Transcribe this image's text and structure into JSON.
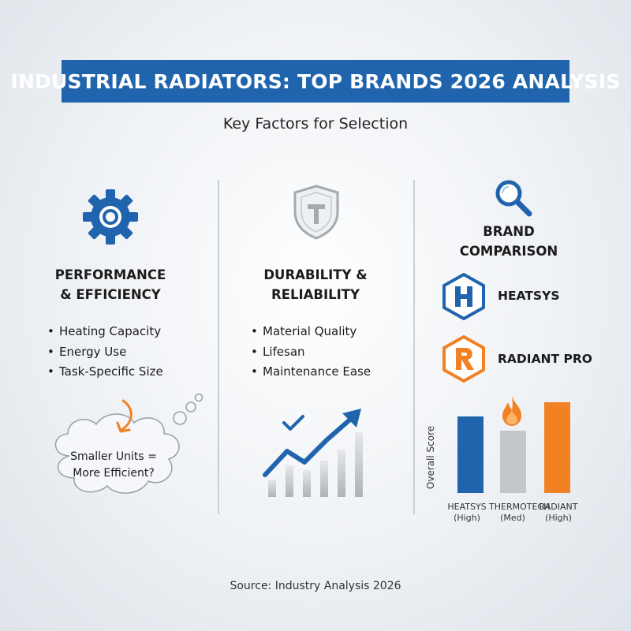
{
  "header": {
    "title": "INDUSTRIAL RADIATORS: TOP BRANDS 2026 ANALYSIS",
    "subtitle": "Key Factors for Selection"
  },
  "columns": {
    "performance": {
      "icon": "gear-icon",
      "heading_line1": "PERFORMANCE",
      "heading_line2": "& EFFICIENCY",
      "items": [
        "Heating Capacity",
        "Energy Use",
        "Task-Specific Size"
      ],
      "thought_line1": "Smaller Units =",
      "thought_line2": "More Efficient?"
    },
    "durability": {
      "icon": "shield-icon",
      "heading_line1": "DURABILITY &",
      "heading_line2": "RELIABILITY",
      "items": [
        "Material Quality",
        "Lifesan",
        "Maintenance Ease"
      ]
    },
    "comparison": {
      "icon": "magnifier-icon",
      "heading_line1": "BRAND",
      "heading_line2": "COMPARISON",
      "brands": [
        {
          "name": "HEATSYS",
          "letter": "H",
          "color": "#1f64ad"
        },
        {
          "name": "RADIANT PRO",
          "letter": "R",
          "color": "#f28124"
        }
      ]
    }
  },
  "chart_data": {
    "type": "bar",
    "ylabel": "Overall Score",
    "categories": [
      "HEATSYS (High)",
      "THERMOTECH (Med)",
      "RADIANT (High)"
    ],
    "label_line1": [
      "HEATSYS",
      "THERMOTECH",
      "RADIANT"
    ],
    "label_line2": [
      "(High)",
      "(Med)",
      "(High)"
    ],
    "values": [
      0.84,
      0.69,
      1.0
    ],
    "colors": [
      "#1f64ad",
      "#c3c7cb",
      "#f28124"
    ]
  },
  "footer": {
    "source": "Source: Industry Analysis 2026"
  }
}
